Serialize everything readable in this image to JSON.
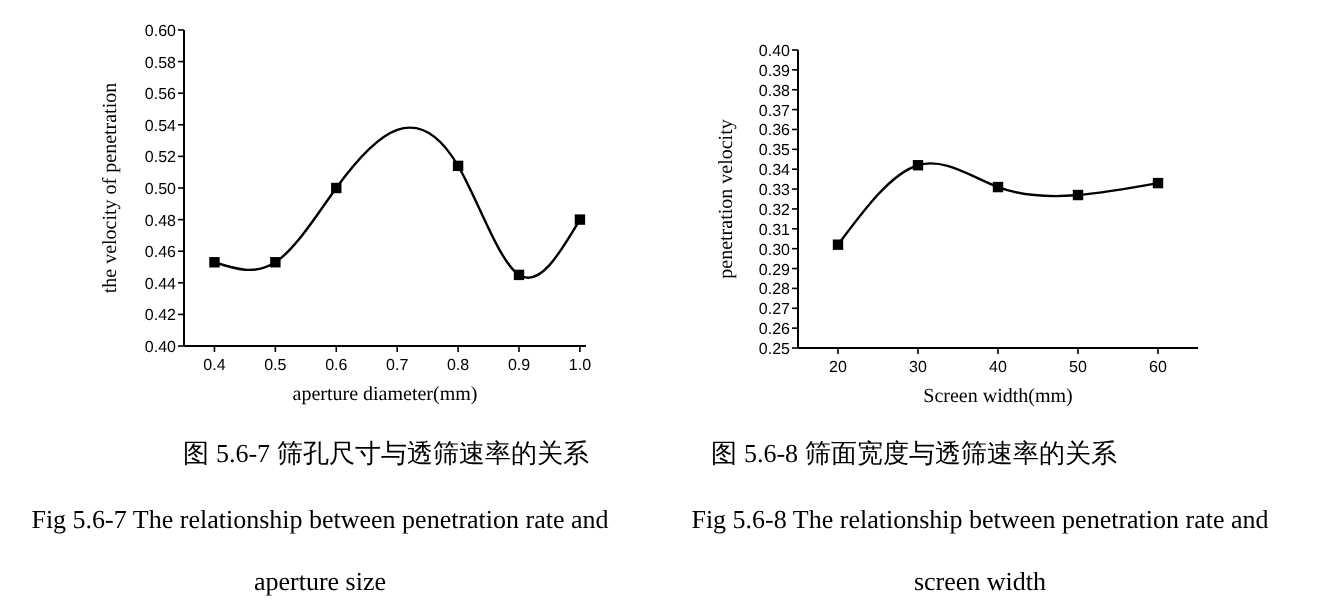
{
  "chart_data": [
    {
      "type": "line",
      "xlabel": "aperture diameter(mm)",
      "ylabel": "the velocity of penetration",
      "x": [
        0.4,
        0.5,
        0.6,
        0.8,
        0.9,
        1.0
      ],
      "series": [
        {
          "color": "#000000",
          "values": [
            0.453,
            0.453,
            0.5,
            0.514,
            0.445,
            0.48
          ]
        }
      ],
      "marker": "square",
      "line_style": "solid",
      "xlim": [
        0.35,
        1.01
      ],
      "xticks": [
        0.4,
        0.5,
        0.6,
        0.7,
        0.8,
        0.9,
        {
          "value": 1.0,
          "label": "1.0"
        }
      ],
      "ylim": [
        0.4,
        0.6
      ],
      "yticks": [
        {
          "value": 0.4,
          "label": "0.40"
        },
        {
          "value": 0.42,
          "label": "0.42"
        },
        {
          "value": 0.44,
          "label": "0.44"
        },
        {
          "value": 0.46,
          "label": "0.46"
        },
        {
          "value": 0.48,
          "label": "0.48"
        },
        {
          "value": 0.5,
          "label": "0.50"
        },
        {
          "value": 0.52,
          "label": "0.52"
        },
        {
          "value": 0.54,
          "label": "0.54"
        },
        {
          "value": 0.56,
          "label": "0.56"
        },
        {
          "value": 0.58,
          "label": "0.58"
        },
        {
          "value": 0.6,
          "label": "0.60"
        }
      ],
      "annotations": [
        "图 5.6-7 筛孔尺寸与透筛速率的关系",
        "Fig 5.6-7 The relationship between penetration rate and aperture size"
      ]
    },
    {
      "type": "line",
      "xlabel": "Screen width(mm)",
      "ylabel": "penetration velocity",
      "x": [
        20,
        30,
        40,
        50,
        60
      ],
      "series": [
        {
          "color": "#000000",
          "values": [
            0.302,
            0.342,
            0.331,
            0.327,
            0.333
          ]
        }
      ],
      "marker": "square",
      "line_style": "solid",
      "xlim": [
        15,
        65
      ],
      "xticks": [
        20,
        30,
        40,
        50,
        60
      ],
      "ylim": [
        0.25,
        0.4
      ],
      "yticks": [
        {
          "value": 0.25,
          "label": "0.25"
        },
        {
          "value": 0.26,
          "label": "0.26"
        },
        {
          "value": 0.27,
          "label": "0.27"
        },
        {
          "value": 0.28,
          "label": "0.28"
        },
        {
          "value": 0.29,
          "label": "0.29"
        },
        {
          "value": 0.3,
          "label": "0.30"
        },
        {
          "value": 0.31,
          "label": "0.31"
        },
        {
          "value": 0.32,
          "label": "0.32"
        },
        {
          "value": 0.33,
          "label": "0.33"
        },
        {
          "value": 0.34,
          "label": "0.34"
        },
        {
          "value": 0.35,
          "label": "0.35"
        },
        {
          "value": 0.36,
          "label": "0.36"
        },
        {
          "value": 0.37,
          "label": "0.37"
        },
        {
          "value": 0.38,
          "label": "0.38"
        },
        {
          "value": 0.39,
          "label": "0.39"
        },
        {
          "value": 0.4,
          "label": "0.40"
        }
      ],
      "annotations": [
        "图 5.6-8 筛面宽度与透筛速率的关系",
        "Fig 5.6-8 The relationship between penetration rate and screen width"
      ]
    }
  ]
}
